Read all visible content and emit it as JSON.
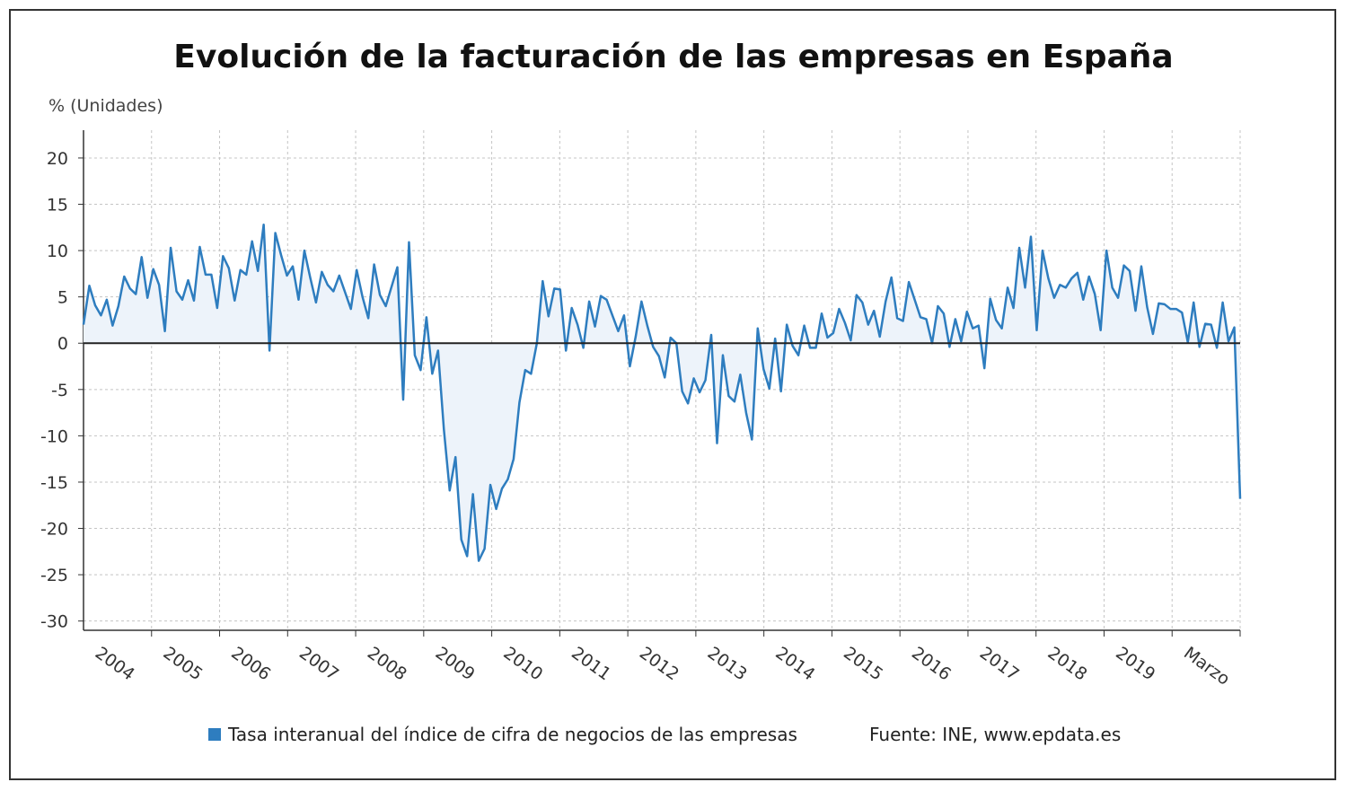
{
  "chart_data": {
    "type": "area",
    "title": "Evolución de la facturación de las empresas en España",
    "ylabel": "% (Unidades)",
    "xlabel": "",
    "ylim": [
      -31,
      23
    ],
    "yticks": [
      20,
      15,
      10,
      5,
      0,
      -5,
      -10,
      -15,
      -20,
      -25,
      -30
    ],
    "xticks": [
      {
        "label": "2004",
        "x": 2004.0
      },
      {
        "label": "2005",
        "x": 2005.0
      },
      {
        "label": "2006",
        "x": 2006.0
      },
      {
        "label": "2007",
        "x": 2007.0
      },
      {
        "label": "2008",
        "x": 2008.0
      },
      {
        "label": "2009",
        "x": 2009.0
      },
      {
        "label": "2010",
        "x": 2010.0
      },
      {
        "label": "2011",
        "x": 2011.0
      },
      {
        "label": "2012",
        "x": 2012.0
      },
      {
        "label": "2013",
        "x": 2013.0
      },
      {
        "label": "2014",
        "x": 2014.0
      },
      {
        "label": "2015",
        "x": 2015.0
      },
      {
        "label": "2016",
        "x": 2016.0
      },
      {
        "label": "2017",
        "x": 2017.0
      },
      {
        "label": "2018",
        "x": 2018.0
      },
      {
        "label": "2019",
        "x": 2019.0
      },
      {
        "label": "Marzo",
        "x": 2020.0
      }
    ],
    "grid": true,
    "legend_position": "bottom",
    "x_start": 2003.0,
    "x_end": 2020.0,
    "series": [
      {
        "name": "Tasa interanual del índice de cifra de negocios de las empresas",
        "color": "#2e7dbf",
        "fill": "#edf3fa",
        "x_start": 2003.0,
        "step_months": 1,
        "values": [
          2.0,
          6.2,
          4.1,
          3.0,
          4.7,
          1.9,
          4.0,
          7.2,
          5.9,
          5.3,
          9.3,
          4.9,
          8.0,
          6.3,
          1.3,
          10.3,
          5.6,
          4.7,
          6.8,
          4.6,
          10.4,
          7.4,
          7.4,
          3.8,
          9.4,
          8.1,
          4.6,
          7.9,
          7.4,
          11.0,
          7.8,
          12.8,
          -0.8,
          11.9,
          9.5,
          7.3,
          8.3,
          4.7,
          10.0,
          7.1,
          4.4,
          7.7,
          6.3,
          5.6,
          7.3,
          5.5,
          3.7,
          7.9,
          5.0,
          2.7,
          8.5,
          5.2,
          4.0,
          6.1,
          8.2,
          -6.1,
          10.9,
          -1.3,
          -2.9,
          2.8,
          -3.3,
          -0.8,
          -9.3,
          -15.9,
          -12.3,
          -21.2,
          -23.0,
          -16.3,
          -23.5,
          -22.2,
          -15.3,
          -17.9,
          -15.7,
          -14.7,
          -12.5,
          -6.4,
          -2.9,
          -3.3,
          0.0,
          6.7,
          2.9,
          5.9,
          5.8,
          -0.8,
          3.8,
          2.0,
          -0.5,
          4.5,
          1.8,
          5.1,
          4.7,
          3.0,
          1.3,
          3.0,
          -2.5,
          0.7,
          4.5,
          1.9,
          -0.4,
          -1.4,
          -3.7,
          0.6,
          0.0,
          -5.2,
          -6.5,
          -3.8,
          -5.3,
          -4.0,
          0.9,
          -10.8,
          -1.3,
          -5.7,
          -6.3,
          -3.4,
          -7.5,
          -10.4,
          1.6,
          -2.8,
          -4.9,
          0.5,
          -5.2,
          2.0,
          -0.3,
          -1.3,
          1.9,
          -0.5,
          -0.5,
          3.2,
          0.6,
          1.1,
          3.7,
          2.2,
          0.3,
          5.2,
          4.4,
          2.0,
          3.5,
          0.7,
          4.5,
          7.1,
          2.7,
          2.4,
          6.6,
          4.7,
          2.8,
          2.6,
          0.0,
          4.0,
          3.2,
          -0.4,
          2.6,
          0.2,
          3.4,
          1.6,
          1.9,
          -2.7,
          4.8,
          2.5,
          1.6,
          6.0,
          3.8,
          10.3,
          6.0,
          11.5,
          1.4,
          10.0,
          7.0,
          4.9,
          6.3,
          6.0,
          7.0,
          7.6,
          4.7,
          7.2,
          5.3,
          1.4,
          10.0,
          6.0,
          4.9,
          8.4,
          7.8,
          3.5,
          8.3,
          3.9,
          1.0,
          4.3,
          4.2,
          3.7,
          3.7,
          3.3,
          0.1,
          4.4,
          -0.4,
          2.1,
          2.0,
          -0.5,
          4.4,
          0.2,
          1.7,
          -16.8
        ]
      }
    ],
    "legend_label": "Tasa interanual del índice de cifra de negocios de las empresas",
    "source": "Fuente: INE, www.epdata.es"
  }
}
